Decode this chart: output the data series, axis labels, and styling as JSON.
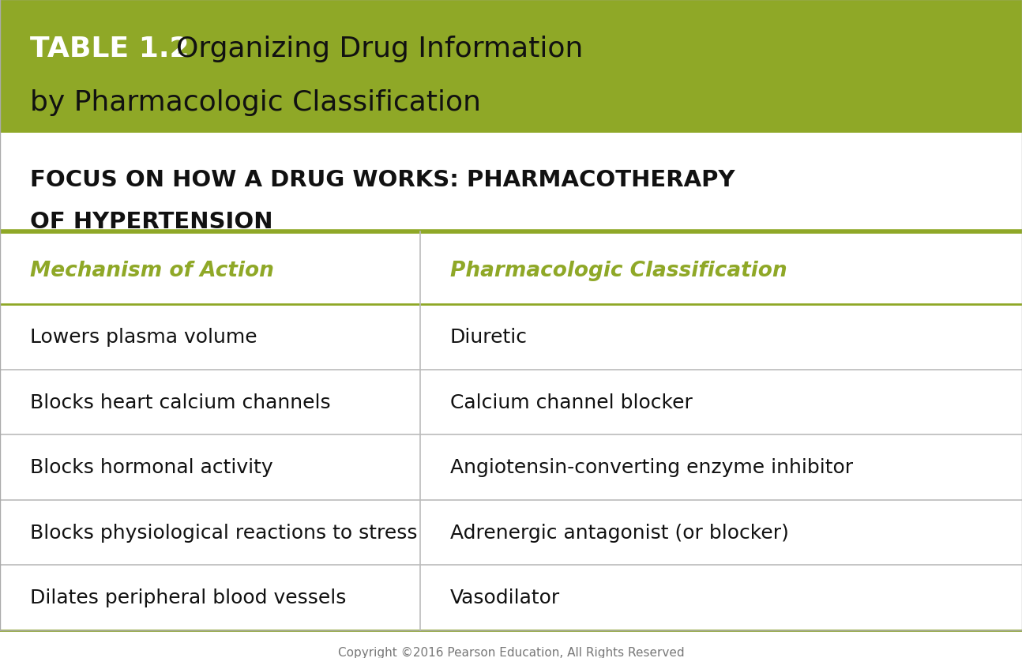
{
  "title_bold": "TABLE 1.2",
  "title_normal": "Organizing Drug Information",
  "title_line2": "by Pharmacologic Classification",
  "subtitle_line1": "FOCUS ON HOW A DRUG WORKS: PHARMACOTHERAPY",
  "subtitle_line2": "OF HYPERTENSION",
  "col_headers": [
    "Mechanism of Action",
    "Pharmacologic Classification"
  ],
  "rows": [
    [
      "Lowers plasma volume",
      "Diuretic"
    ],
    [
      "Blocks heart calcium channels",
      "Calcium channel blocker"
    ],
    [
      "Blocks hormonal activity",
      "Angiotensin-converting enzyme inhibitor"
    ],
    [
      "Blocks physiological reactions to stress",
      "Adrenergic antagonist (or blocker)"
    ],
    [
      "Dilates peripheral blood vessels",
      "Vasodilator"
    ]
  ],
  "header_bg": "#8fa827",
  "header_text_color": "#FFFFFF",
  "col_header_color": "#8fa827",
  "body_bg": "#FFFFFF",
  "row_line_color": "#BBBBBB",
  "divider_color": "#8fa827",
  "subtitle_color": "#111111",
  "body_text_color": "#111111",
  "footer_text": "Copyright ©2016 Pearson Education, All Rights Reserved",
  "footer_color": "#777777",
  "background_color": "#FFFFFF",
  "outer_border_color": "#AAAAAA"
}
